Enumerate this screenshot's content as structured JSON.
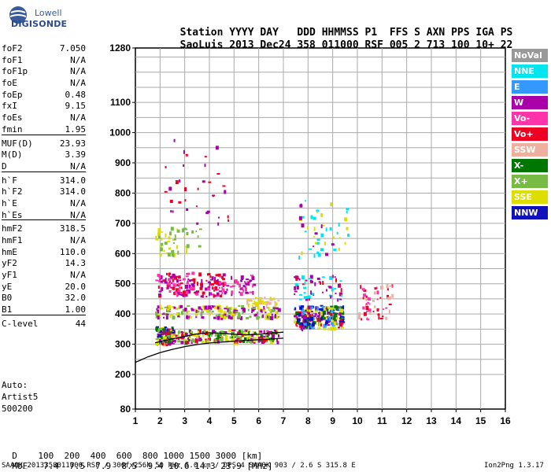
{
  "logo": {
    "line1": "Lowell",
    "line2": "DIGISONDE"
  },
  "header": {
    "row1": [
      "Station",
      "YYYY",
      "DAY",
      "DDD",
      "HHMMSS",
      "P1",
      "FFS",
      "S",
      "AXN",
      "PPS",
      "IGA",
      "PS"
    ],
    "row2": [
      "SaoLuis",
      "2013",
      "Dec24",
      "358",
      "011000",
      "RSF",
      "005",
      "2",
      "713",
      "100",
      "10+",
      "22"
    ]
  },
  "params": [
    {
      "label": "foF2",
      "value": "7.050"
    },
    {
      "label": "foF1",
      "value": "N/A"
    },
    {
      "label": "foF1p",
      "value": "N/A"
    },
    {
      "label": "foE",
      "value": "N/A"
    },
    {
      "label": "foEp",
      "value": "0.48"
    },
    {
      "label": "fxI",
      "value": "9.15"
    },
    {
      "label": "foEs",
      "value": "N/A"
    },
    {
      "label": "fmin",
      "value": "1.95"
    },
    {
      "label": "MUF(D)",
      "value": "23.93"
    },
    {
      "label": "M(D)",
      "value": "3.39"
    },
    {
      "label": "D",
      "value": "N/A"
    },
    {
      "label": "h`F",
      "value": "314.0"
    },
    {
      "label": "h`F2",
      "value": "314.0"
    },
    {
      "label": "h`E",
      "value": "N/A"
    },
    {
      "label": "h`Es",
      "value": "N/A"
    },
    {
      "label": "hmF2",
      "value": "318.5"
    },
    {
      "label": "hmF1",
      "value": "N/A"
    },
    {
      "label": "hmE",
      "value": "110.0"
    },
    {
      "label": "yF2",
      "value": "14.3"
    },
    {
      "label": "yF1",
      "value": "N/A"
    },
    {
      "label": "yE",
      "value": "20.0"
    },
    {
      "label": "B0",
      "value": "32.0"
    },
    {
      "label": "B1",
      "value": "1.00"
    },
    {
      "label": "C-level",
      "value": "44"
    }
  ],
  "auto": [
    "Auto:",
    "Artist5",
    "500200"
  ],
  "legend": [
    {
      "label": "NoVal",
      "color": "#999999"
    },
    {
      "label": "NNE",
      "color": "#00e5ee"
    },
    {
      "label": "E",
      "color": "#3399ff"
    },
    {
      "label": "W",
      "color": "#aa00aa"
    },
    {
      "label": "Vo-",
      "color": "#ff33aa"
    },
    {
      "label": "Vo+",
      "color": "#ee0022"
    },
    {
      "label": "SSW",
      "color": "#f0b0a0"
    },
    {
      "label": "X-",
      "color": "#007700"
    },
    {
      "label": "X+",
      "color": "#77bb44"
    },
    {
      "label": "SSE",
      "color": "#dddd00"
    },
    {
      "label": "NNW",
      "color": "#1111bb"
    }
  ],
  "dmuf": {
    "d_label": "D",
    "d_values": [
      "100",
      "200",
      "400",
      "600",
      "800",
      "1000",
      "1500",
      "3000",
      "[km]"
    ],
    "muf_label": "MUF",
    "muf_values": [
      "7.4",
      "7.5",
      "7.9",
      "8.5",
      "9.4",
      "10.6",
      "14.3",
      "23.9",
      "[MHz]"
    ]
  },
  "footer": {
    "left": "SAAOK_2013358011000.RSF / 300fx256h 50 kHz 5.0 km / DPS-4 SAAOK 903 / 2.6 S 315.8 E",
    "right": "Ion2Png 1.3.17"
  },
  "chart_data": {
    "type": "scatter",
    "x_ticks": [
      "1",
      "2",
      "3",
      "4",
      "5",
      "6",
      "7",
      "8",
      "9",
      "10",
      "11",
      "12",
      "13",
      "14",
      "15",
      "16"
    ],
    "y_ticks": [
      "80",
      "200",
      "300",
      "400",
      "500",
      "600",
      "700",
      "800",
      "900",
      "1000",
      "1100",
      "1280"
    ],
    "xlim": [
      1,
      16
    ],
    "ylim": [
      80,
      1280
    ],
    "clusters": [
      {
        "x": [
          1.8,
          2.5
        ],
        "y": [
          300,
          360
        ],
        "colors": [
          "#007700",
          "#77bb44",
          "#ee0022",
          "#aa00aa",
          "#1111bb",
          "#dddd00"
        ],
        "n": 120
      },
      {
        "x": [
          2.2,
          6.8
        ],
        "y": [
          310,
          350
        ],
        "colors": [
          "#007700",
          "#77bb44",
          "#dddd00",
          "#aa00aa",
          "#ee0022"
        ],
        "n": 260
      },
      {
        "x": [
          1.8,
          6.8
        ],
        "y": [
          390,
          430
        ],
        "colors": [
          "#dddd00",
          "#77bb44",
          "#aa00aa"
        ],
        "n": 200
      },
      {
        "x": [
          1.8,
          4.6
        ],
        "y": [
          460,
          540
        ],
        "colors": [
          "#aa00aa",
          "#ee0022",
          "#ff33aa"
        ],
        "n": 180
      },
      {
        "x": [
          1.8,
          3.6
        ],
        "y": [
          600,
          690
        ],
        "colors": [
          "#dddd00",
          "#77bb44"
        ],
        "n": 50
      },
      {
        "x": [
          4.6,
          5.8
        ],
        "y": [
          470,
          530
        ],
        "colors": [
          "#aa00aa",
          "#ff33aa"
        ],
        "n": 40
      },
      {
        "x": [
          5.5,
          6.8
        ],
        "y": [
          430,
          460
        ],
        "colors": [
          "#f0b0a0",
          "#dddd00"
        ],
        "n": 40
      },
      {
        "x": [
          7.4,
          9.4
        ],
        "y": [
          355,
          430
        ],
        "colors": [
          "#1111bb",
          "#dddd00",
          "#3399ff",
          "#007700",
          "#ee0022",
          "#aa00aa"
        ],
        "n": 280
      },
      {
        "x": [
          7.4,
          9.4
        ],
        "y": [
          450,
          530
        ],
        "colors": [
          "#aa00aa",
          "#ee0022",
          "#00e5ee"
        ],
        "n": 60
      },
      {
        "x": [
          7.6,
          9.6
        ],
        "y": [
          590,
          780
        ],
        "colors": [
          "#aa00aa",
          "#00e5ee",
          "#dddd00"
        ],
        "n": 50
      },
      {
        "x": [
          10.0,
          11.4
        ],
        "y": [
          380,
          500
        ],
        "colors": [
          "#ff33aa",
          "#ee0022",
          "#f0b0a0"
        ],
        "n": 60
      },
      {
        "x": [
          2.0,
          4.8
        ],
        "y": [
          700,
          980
        ],
        "colors": [
          "#aa00aa",
          "#ee0022"
        ],
        "n": 35
      }
    ],
    "curves": [
      {
        "name": "lower",
        "x": [
          1.0,
          1.5,
          2.0,
          2.5,
          3.0,
          3.5,
          4.0,
          4.5,
          5.0,
          5.5,
          6.0,
          6.5,
          7.0
        ],
        "y": [
          240,
          258,
          272,
          283,
          292,
          299,
          304,
          307,
          310,
          313,
          315,
          317,
          320
        ]
      },
      {
        "name": "upper",
        "x": [
          1.8,
          2.5,
          3.0,
          3.5,
          4.0,
          4.5,
          5.0,
          5.5,
          6.0,
          6.5,
          7.0
        ],
        "y": [
          305,
          318,
          326,
          334,
          338,
          336,
          333,
          331,
          333,
          336,
          340
        ]
      }
    ]
  }
}
